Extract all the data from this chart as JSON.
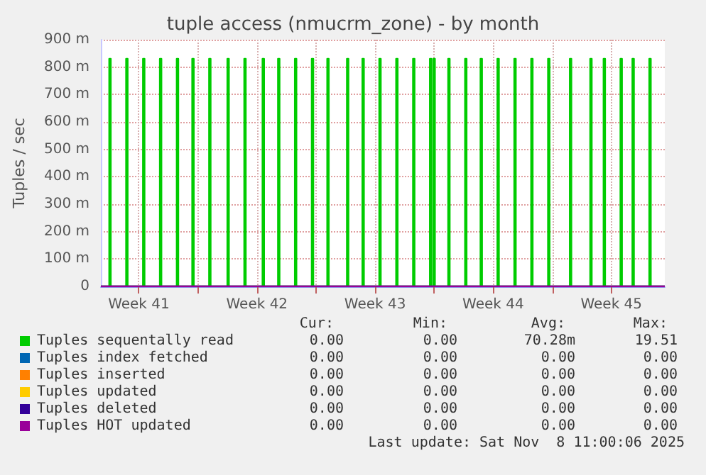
{
  "chart_data": {
    "type": "line",
    "title": "tuple access (nmucrm_zone) - by month",
    "ylabel": "Tuples / sec",
    "xlim": [
      "2025-10-07T06:00",
      "2025-11-09T16:00"
    ],
    "xticks": [
      {
        "value": "2025-10-09T12:00",
        "label": "Week 41"
      },
      {
        "value": "2025-10-13T00:00",
        "label": null
      },
      {
        "value": "2025-10-16T12:00",
        "label": "Week 42"
      },
      {
        "value": "2025-10-20T00:00",
        "label": null
      },
      {
        "value": "2025-10-23T12:00",
        "label": "Week 43"
      },
      {
        "value": "2025-10-27T00:00",
        "label": null
      },
      {
        "value": "2025-10-30T12:00",
        "label": "Week 44"
      },
      {
        "value": "2025-11-03T00:00",
        "label": null
      },
      {
        "value": "2025-11-06T12:00",
        "label": "Week 45"
      }
    ],
    "ylim": [
      0,
      900
    ],
    "yticks": [
      0,
      {
        "value": 100,
        "label": "100 m"
      },
      {
        "value": 200,
        "label": "200 m"
      },
      {
        "value": 300,
        "label": "300 m"
      },
      {
        "value": 400,
        "label": "400 m"
      },
      {
        "value": 500,
        "label": "500 m"
      },
      {
        "value": 600,
        "label": "600 m"
      },
      {
        "value": 700,
        "label": "700 m"
      },
      {
        "value": 800,
        "label": "800 m"
      },
      {
        "value": 900,
        "label": "900 m"
      }
    ],
    "grid": true,
    "legend": "bottom",
    "marker": "none",
    "line_style": "solid",
    "series": [
      {
        "name": "Tuples sequentally read",
        "color": "#00cc00",
        "x": [
          "2025-10-07T06:00",
          "2025-10-07T18:00",
          "2025-10-07T18:00",
          "2025-10-07T20:00",
          "2025-10-07T20:00",
          "2025-10-08T18:00",
          "2025-10-08T18:00",
          "2025-10-08T20:00",
          "2025-10-08T20:00",
          "2025-10-09T18:00",
          "2025-10-09T18:00",
          "2025-10-09T20:00",
          "2025-10-09T20:00",
          "2025-10-10T18:00",
          "2025-10-10T18:00",
          "2025-10-10T20:00",
          "2025-10-10T20:00",
          "2025-10-11T18:00",
          "2025-10-11T18:00",
          "2025-10-11T20:00",
          "2025-10-11T20:00",
          "2025-10-12T16:00",
          "2025-10-12T16:00",
          "2025-10-12T18:00",
          "2025-10-12T18:00",
          "2025-10-13T16:00",
          "2025-10-13T16:00",
          "2025-10-13T18:00",
          "2025-10-13T18:00",
          "2025-10-14T18:00",
          "2025-10-14T18:00",
          "2025-10-14T20:00",
          "2025-10-14T20:00",
          "2025-10-15T18:00",
          "2025-10-15T18:00",
          "2025-10-15T20:00",
          "2025-10-15T20:00",
          "2025-10-16T20:00",
          "2025-10-16T20:00",
          "2025-10-16T22:00",
          "2025-10-16T22:00",
          "2025-10-17T18:00",
          "2025-10-17T18:00",
          "2025-10-17T20:00",
          "2025-10-17T20:00",
          "2025-10-18T18:00",
          "2025-10-18T18:00",
          "2025-10-18T20:00",
          "2025-10-18T20:00",
          "2025-10-19T18:00",
          "2025-10-19T18:00",
          "2025-10-19T20:00",
          "2025-10-19T20:00",
          "2025-10-20T16:00",
          "2025-10-20T16:00",
          "2025-10-20T18:00",
          "2025-10-20T18:00",
          "2025-10-21T20:00",
          "2025-10-21T20:00",
          "2025-10-21T22:00",
          "2025-10-21T22:00",
          "2025-10-22T18:00",
          "2025-10-22T18:00",
          "2025-10-22T20:00",
          "2025-10-22T20:00",
          "2025-10-23T18:00",
          "2025-10-23T18:00",
          "2025-10-23T20:00",
          "2025-10-23T20:00",
          "2025-10-24T18:00",
          "2025-10-24T18:00",
          "2025-10-24T20:00",
          "2025-10-24T20:00",
          "2025-10-25T18:00",
          "2025-10-25T18:00",
          "2025-10-25T20:00",
          "2025-10-25T20:00",
          "2025-10-26T18:00",
          "2025-10-26T18:00",
          "2025-10-26T20:00",
          "2025-10-26T20:00",
          "2025-10-26T23:00",
          "2025-10-26T23:00",
          "2025-10-27T01:00",
          "2025-10-27T01:00",
          "2025-10-27T20:00",
          "2025-10-27T20:00",
          "2025-10-27T22:00",
          "2025-10-27T22:00",
          "2025-10-28T20:00",
          "2025-10-28T20:00",
          "2025-10-28T22:00",
          "2025-10-28T22:00",
          "2025-10-29T18:00",
          "2025-10-29T18:00",
          "2025-10-29T20:00",
          "2025-10-29T20:00",
          "2025-10-30T18:00",
          "2025-10-30T18:00",
          "2025-10-30T20:00",
          "2025-10-30T20:00",
          "2025-10-31T18:00",
          "2025-10-31T18:00",
          "2025-10-31T20:00",
          "2025-10-31T20:00",
          "2025-11-01T18:00",
          "2025-11-01T18:00",
          "2025-11-01T20:00",
          "2025-11-01T20:00",
          "2025-11-02T18:00",
          "2025-11-02T18:00",
          "2025-11-02T20:00",
          "2025-11-02T20:00",
          "2025-11-04T01:00",
          "2025-11-04T01:00",
          "2025-11-04T03:00",
          "2025-11-04T03:00",
          "2025-11-05T06:00",
          "2025-11-05T06:00",
          "2025-11-05T08:00",
          "2025-11-05T08:00",
          "2025-11-06T01:00",
          "2025-11-06T01:00",
          "2025-11-06T03:00",
          "2025-11-06T03:00",
          "2025-11-07T01:00",
          "2025-11-07T01:00",
          "2025-11-07T03:00",
          "2025-11-07T03:00",
          "2025-11-07T18:00",
          "2025-11-07T18:00",
          "2025-11-07T20:00",
          "2025-11-07T20:00",
          "2025-11-08T18:00",
          "2025-11-08T18:00",
          "2025-11-08T20:00",
          "2025-11-08T20:00",
          "2025-11-09T16:00"
        ],
        "values": [
          0,
          0,
          830,
          830,
          0,
          0,
          830,
          830,
          0,
          0,
          830,
          830,
          0,
          0,
          830,
          830,
          0,
          0,
          830,
          830,
          0,
          0,
          830,
          830,
          0,
          0,
          830,
          830,
          0,
          0,
          830,
          830,
          0,
          0,
          830,
          830,
          0,
          0,
          830,
          830,
          0,
          0,
          830,
          830,
          0,
          0,
          830,
          830,
          0,
          0,
          830,
          830,
          0,
          0,
          830,
          830,
          0,
          0,
          830,
          830,
          0,
          0,
          830,
          830,
          0,
          0,
          830,
          830,
          0,
          0,
          830,
          830,
          0,
          0,
          830,
          830,
          0,
          0,
          830,
          830,
          0,
          0,
          830,
          830,
          0,
          0,
          830,
          830,
          0,
          0,
          830,
          830,
          0,
          0,
          830,
          830,
          0,
          0,
          830,
          830,
          0,
          0,
          830,
          830,
          0,
          0,
          830,
          830,
          0,
          0,
          830,
          830,
          0,
          0,
          830,
          830,
          0,
          0,
          830,
          830,
          0,
          0,
          830,
          830,
          0,
          0,
          830,
          830,
          0,
          0,
          830,
          830,
          0,
          0,
          830,
          830,
          0,
          0
        ]
      },
      {
        "name": "Tuples index fetched",
        "color": "#0066b3"
      },
      {
        "name": "Tuples inserted",
        "color": "#ff8000"
      },
      {
        "name": "Tuples updated",
        "color": "#ffcc00"
      },
      {
        "name": "Tuples deleted",
        "color": "#330099",
        "x": [
          "2025-10-07T06:00",
          "2025-11-09T16:00"
        ],
        "values": [
          0,
          0
        ]
      },
      {
        "name": "Tuples HOT updated",
        "color": "#990099",
        "x": [
          "2025-10-07T06:00",
          "2025-11-09T16:00"
        ],
        "values": [
          0,
          0
        ]
      }
    ],
    "annotations": [
      "Cur:",
      "Min:",
      "Avg:",
      "Max:",
      "0.00",
      "0.00",
      "70.28m",
      "19.51",
      "0.00",
      "0.00",
      "0.00",
      "0.00",
      "0.00",
      "0.00",
      "0.00",
      "0.00",
      "0.00",
      "0.00",
      "0.00",
      "0.00",
      "0.00",
      "0.00",
      "0.00",
      "0.00",
      "0.00",
      "0.00",
      "0.00",
      "0.00",
      "Last update: Sat Nov  8 11:00:06 2025"
    ]
  }
}
